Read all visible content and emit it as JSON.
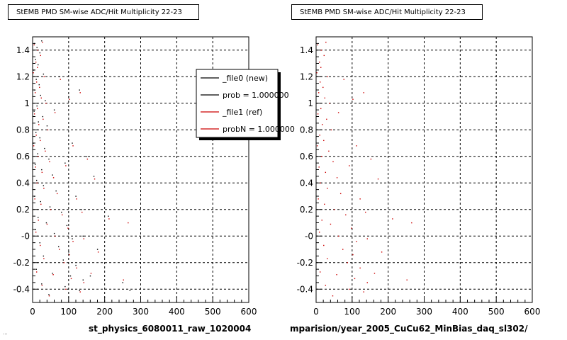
{
  "canvas": {
    "background": "#ffffff",
    "footer_text": "..."
  },
  "chart_data": [
    {
      "type": "scatter",
      "title": "StEMB PMD SM-wise ADC/Hit Multiplicity 22-23",
      "xlabel": "st_physics_6080011_raw_1020004",
      "ylabel": "",
      "xlim": [
        0,
        600
      ],
      "ylim": [
        -0.5,
        1.5
      ],
      "x_ticks": [
        0,
        100,
        200,
        300,
        400,
        500,
        600
      ],
      "y_ticks": [
        -0.4,
        -0.2,
        0,
        0.2,
        0.4,
        0.6,
        0.8,
        1,
        1.2,
        1.4
      ],
      "y_tick_labels": [
        "-0.4",
        "-0.2",
        "-0",
        "0.2",
        "0.4",
        "0.6",
        "0.8",
        "1",
        "1.2",
        "1.4"
      ],
      "grid": true,
      "legend": {
        "placement": "top-right",
        "entries": [
          {
            "label": "_file0 (new)",
            "color": "#000000"
          },
          {
            "label": "prob = 1.000000",
            "color": "#000000"
          },
          {
            "label": "_file1 (ref)",
            "color": "#cc0000"
          },
          {
            "label": "probN = 1.000000",
            "color": "#cc0000"
          }
        ]
      },
      "series": [
        {
          "color": "#000000",
          "points": [
            [
              5,
              1.45
            ],
            [
              12,
              1.42
            ],
            [
              20,
              1.38
            ],
            [
              8,
              1.33
            ],
            [
              25,
              1.47
            ],
            [
              15,
              1.29
            ],
            [
              3,
              1.25
            ],
            [
              30,
              1.22
            ],
            [
              10,
              1.18
            ],
            [
              18,
              1.14
            ],
            [
              6,
              1.1
            ],
            [
              22,
              1.06
            ],
            [
              35,
              1.02
            ],
            [
              12,
              0.98
            ],
            [
              4,
              0.94
            ],
            [
              28,
              0.9
            ],
            [
              16,
              0.86
            ],
            [
              40,
              0.83
            ],
            [
              9,
              0.78
            ],
            [
              20,
              0.74
            ],
            [
              2,
              0.7
            ],
            [
              33,
              0.66
            ],
            [
              14,
              0.62
            ],
            [
              45,
              0.58
            ],
            [
              7,
              0.54
            ],
            [
              25,
              0.5
            ],
            [
              55,
              0.46
            ],
            [
              11,
              0.42
            ],
            [
              30,
              0.38
            ],
            [
              65,
              0.34
            ],
            [
              5,
              0.3
            ],
            [
              22,
              0.26
            ],
            [
              48,
              0.22
            ],
            [
              80,
              0.18
            ],
            [
              15,
              0.14
            ],
            [
              38,
              0.1
            ],
            [
              95,
              0.08
            ],
            [
              8,
              0.05
            ],
            [
              60,
              0.02
            ],
            [
              110,
              -0.02
            ],
            [
              20,
              -0.05
            ],
            [
              72,
              -0.08
            ],
            [
              100,
              -0.12
            ],
            [
              30,
              -0.15
            ],
            [
              85,
              -0.18
            ],
            [
              120,
              -0.22
            ],
            [
              10,
              -0.25
            ],
            [
              55,
              -0.28
            ],
            [
              105,
              -0.3
            ],
            [
              140,
              -0.33
            ],
            [
              25,
              -0.36
            ],
            [
              90,
              -0.38
            ],
            [
              130,
              -0.41
            ],
            [
              45,
              -0.44
            ],
            [
              160,
              -0.3
            ],
            [
              180,
              -0.1
            ],
            [
              210,
              0.15
            ],
            [
              250,
              -0.35
            ],
            [
              270,
              -0.41
            ],
            [
              100,
              1.05
            ],
            [
              130,
              1.1
            ],
            [
              110,
              0.7
            ],
            [
              75,
              1.2
            ],
            [
              60,
              0.95
            ],
            [
              90,
              0.55
            ],
            [
              150,
              0.6
            ],
            [
              170,
              0.45
            ],
            [
              120,
              0.3
            ],
            [
              135,
              0.2
            ],
            [
              140,
              0.0
            ]
          ]
        },
        {
          "color": "#cc0000",
          "points": [
            [
              4,
              1.44
            ],
            [
              14,
              1.4
            ],
            [
              22,
              1.36
            ],
            [
              9,
              1.31
            ],
            [
              27,
              1.46
            ],
            [
              13,
              1.27
            ],
            [
              2,
              1.23
            ],
            [
              32,
              1.2
            ],
            [
              11,
              1.16
            ],
            [
              19,
              1.12
            ],
            [
              7,
              1.08
            ],
            [
              24,
              1.04
            ],
            [
              37,
              1.0
            ],
            [
              13,
              0.96
            ],
            [
              5,
              0.92
            ],
            [
              29,
              0.88
            ],
            [
              17,
              0.84
            ],
            [
              42,
              0.8
            ],
            [
              10,
              0.76
            ],
            [
              21,
              0.72
            ],
            [
              3,
              0.68
            ],
            [
              35,
              0.64
            ],
            [
              15,
              0.6
            ],
            [
              47,
              0.56
            ],
            [
              8,
              0.52
            ],
            [
              26,
              0.48
            ],
            [
              58,
              0.44
            ],
            [
              12,
              0.4
            ],
            [
              31,
              0.36
            ],
            [
              68,
              0.32
            ],
            [
              6,
              0.28
            ],
            [
              23,
              0.24
            ],
            [
              50,
              0.2
            ],
            [
              82,
              0.16
            ],
            [
              16,
              0.12
            ],
            [
              40,
              0.09
            ],
            [
              98,
              0.06
            ],
            [
              9,
              0.03
            ],
            [
              62,
              0.0
            ],
            [
              112,
              -0.04
            ],
            [
              21,
              -0.07
            ],
            [
              74,
              -0.1
            ],
            [
              102,
              -0.14
            ],
            [
              31,
              -0.17
            ],
            [
              87,
              -0.2
            ],
            [
              122,
              -0.24
            ],
            [
              11,
              -0.27
            ],
            [
              57,
              -0.29
            ],
            [
              107,
              -0.32
            ],
            [
              142,
              -0.35
            ],
            [
              26,
              -0.37
            ],
            [
              92,
              -0.4
            ],
            [
              132,
              -0.42
            ],
            [
              46,
              -0.45
            ],
            [
              162,
              -0.28
            ],
            [
              182,
              -0.12
            ],
            [
              212,
              0.13
            ],
            [
              252,
              -0.33
            ],
            [
              265,
              0.1
            ],
            [
              102,
              1.03
            ],
            [
              132,
              1.08
            ],
            [
              112,
              0.68
            ],
            [
              77,
              1.18
            ],
            [
              62,
              0.93
            ],
            [
              92,
              0.53
            ],
            [
              152,
              0.58
            ],
            [
              172,
              0.43
            ],
            [
              122,
              0.28
            ],
            [
              137,
              0.18
            ],
            [
              142,
              -0.02
            ]
          ]
        }
      ]
    },
    {
      "type": "scatter",
      "title": "StEMB PMD SM-wise ADC/Hit Multiplicity 22-23",
      "xlabel": "mparision/year_2005_CuCu62_MinBias_daq_sl302/",
      "ylabel": "",
      "xlim": [
        0,
        600
      ],
      "ylim": [
        -0.5,
        1.5
      ],
      "x_ticks": [
        0,
        100,
        200,
        300,
        400,
        500,
        600
      ],
      "y_ticks": [
        -0.4,
        -0.2,
        0,
        0.2,
        0.4,
        0.6,
        0.8,
        1,
        1.2,
        1.4
      ],
      "y_tick_labels": [
        "-0.4",
        "-0.2",
        "-0",
        "0.2",
        "0.4",
        "0.6",
        "0.8",
        "1",
        "1.2",
        "1.4"
      ],
      "grid": true,
      "series": [
        {
          "color": "#cc0000",
          "points": [
            [
              4,
              1.44
            ],
            [
              14,
              1.4
            ],
            [
              22,
              1.36
            ],
            [
              9,
              1.31
            ],
            [
              27,
              1.46
            ],
            [
              13,
              1.27
            ],
            [
              2,
              1.23
            ],
            [
              32,
              1.2
            ],
            [
              11,
              1.16
            ],
            [
              19,
              1.12
            ],
            [
              7,
              1.08
            ],
            [
              24,
              1.04
            ],
            [
              37,
              1.0
            ],
            [
              13,
              0.96
            ],
            [
              5,
              0.92
            ],
            [
              29,
              0.88
            ],
            [
              17,
              0.84
            ],
            [
              42,
              0.8
            ],
            [
              10,
              0.76
            ],
            [
              21,
              0.72
            ],
            [
              3,
              0.68
            ],
            [
              35,
              0.64
            ],
            [
              15,
              0.6
            ],
            [
              47,
              0.56
            ],
            [
              8,
              0.52
            ],
            [
              26,
              0.48
            ],
            [
              58,
              0.44
            ],
            [
              12,
              0.4
            ],
            [
              31,
              0.36
            ],
            [
              68,
              0.32
            ],
            [
              6,
              0.28
            ],
            [
              23,
              0.24
            ],
            [
              50,
              0.2
            ],
            [
              82,
              0.16
            ],
            [
              16,
              0.12
            ],
            [
              40,
              0.09
            ],
            [
              98,
              0.06
            ],
            [
              9,
              0.03
            ],
            [
              62,
              0.0
            ],
            [
              112,
              -0.04
            ],
            [
              21,
              -0.07
            ],
            [
              74,
              -0.1
            ],
            [
              102,
              -0.14
            ],
            [
              31,
              -0.17
            ],
            [
              87,
              -0.2
            ],
            [
              122,
              -0.24
            ],
            [
              11,
              -0.27
            ],
            [
              57,
              -0.29
            ],
            [
              107,
              -0.32
            ],
            [
              142,
              -0.35
            ],
            [
              26,
              -0.37
            ],
            [
              92,
              -0.4
            ],
            [
              132,
              -0.42
            ],
            [
              46,
              -0.45
            ],
            [
              162,
              -0.28
            ],
            [
              182,
              -0.12
            ],
            [
              212,
              0.13
            ],
            [
              252,
              -0.33
            ],
            [
              265,
              0.1
            ],
            [
              102,
              1.03
            ],
            [
              132,
              1.08
            ],
            [
              112,
              0.68
            ],
            [
              77,
              1.18
            ],
            [
              62,
              0.93
            ],
            [
              92,
              0.53
            ],
            [
              152,
              0.58
            ],
            [
              172,
              0.43
            ],
            [
              122,
              0.28
            ],
            [
              137,
              0.18
            ],
            [
              142,
              -0.02
            ]
          ]
        }
      ]
    }
  ]
}
